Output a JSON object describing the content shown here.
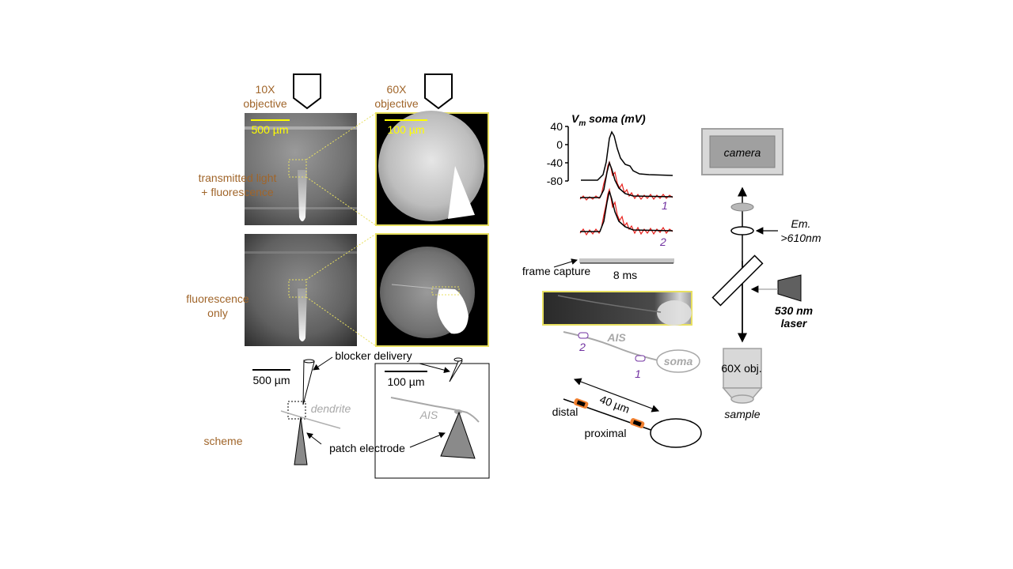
{
  "left_panel": {
    "objective_10x": {
      "line1": "10X",
      "line2": "objective"
    },
    "objective_60x": {
      "line1": "60X",
      "line2": "objective"
    },
    "scale_10x_top": "500 µm",
    "scale_60x_top": "100 µm",
    "row1_label": {
      "line1": "transmitted light",
      "line2": "+ fluorescence"
    },
    "row2_label": {
      "line1": "fluorescence",
      "line2": "only"
    },
    "scheme_label": "scheme",
    "scheme_scale_10x": "500 µm",
    "scheme_scale_60x": "100 µm",
    "blocker_label": "blocker delivery",
    "dendrite_label": "dendrite",
    "ais_label": "AIS",
    "patch_label": "patch electrode",
    "colors": {
      "label_brown": "#a0652a",
      "scale_yellow": "#ffff00",
      "zoom_yellow": "#e8e060"
    }
  },
  "trace_panel": {
    "vm_label": "V",
    "vm_sub": "m",
    "vm_rest": " soma (mV)",
    "y_ticks": [
      "40",
      "0",
      "-40",
      "-80"
    ],
    "trace1_label": "1",
    "trace2_label": "2",
    "frame_label": "frame capture",
    "time_label": "8 ms",
    "colors": {
      "optical_trace": "#e8201c",
      "fit_trace": "#000000",
      "site_purple": "#7030a0"
    }
  },
  "neuron_scheme": {
    "ais_label": "AIS",
    "soma_label": "soma",
    "site1": "1",
    "site2": "2",
    "distance_label": "40 µm",
    "distal_label": "distal",
    "proximal_label": "proximal",
    "colors": {
      "electrode_orange": "#f08030"
    }
  },
  "optics": {
    "camera_label": "camera",
    "em_label": {
      "line1": "Em.",
      "line2": ">610nm"
    },
    "laser_label": {
      "line1": "530 nm",
      "line2": "laser"
    },
    "obj_label": "60X obj.",
    "sample_label": "sample"
  }
}
